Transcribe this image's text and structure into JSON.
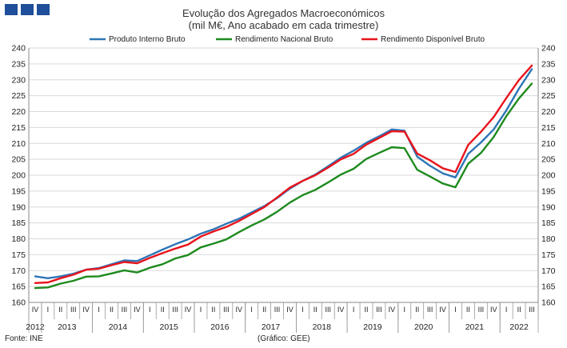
{
  "header": {
    "title": "Evolução dos Agregados Macroeconómicos",
    "subtitle": "(mil M€, Ano acabado em cada trimestre)"
  },
  "footer": {
    "source": "Fonte: INE",
    "credit": "(Gráfico: GEE)"
  },
  "colors": {
    "brand": "#1f4e9a",
    "grid": "#d9d9d9"
  },
  "chart_data": {
    "type": "line",
    "title": "Evolução dos Agregados Macroeconómicos",
    "subtitle": "(mil M€, Ano acabado em cada trimestre)",
    "ylim": [
      160,
      240
    ],
    "ytick_step": 5,
    "y_axis_both_sides": true,
    "grid": true,
    "legend_position": "top",
    "x": [
      "2012 IV",
      "2013 I",
      "2013 II",
      "2013 III",
      "2013 IV",
      "2014 I",
      "2014 II",
      "2014 III",
      "2014 IV",
      "2015 I",
      "2015 II",
      "2015 III",
      "2015 IV",
      "2016 I",
      "2016 II",
      "2016 III",
      "2016 IV",
      "2017 I",
      "2017 II",
      "2017 III",
      "2017 IV",
      "2018 I",
      "2018 II",
      "2018 III",
      "2018 IV",
      "2019 I",
      "2019 II",
      "2019 III",
      "2019 IV",
      "2020 I",
      "2020 II",
      "2020 III",
      "2020 IV",
      "2021 I",
      "2021 II",
      "2021 III",
      "2021 IV",
      "2022 I",
      "2022 II",
      "2022 III"
    ],
    "quarter_labels": [
      "IV",
      "I",
      "II",
      "III",
      "IV",
      "I",
      "II",
      "III",
      "IV",
      "I",
      "II",
      "III",
      "IV",
      "I",
      "II",
      "III",
      "IV",
      "I",
      "II",
      "III",
      "IV",
      "I",
      "II",
      "III",
      "IV",
      "I",
      "II",
      "III",
      "IV",
      "I",
      "II",
      "III",
      "IV",
      "I",
      "II",
      "III",
      "IV",
      "I",
      "II",
      "III"
    ],
    "year_labels": [
      {
        "label": "2012",
        "start": 0,
        "end": 0
      },
      {
        "label": "2013",
        "start": 1,
        "end": 4
      },
      {
        "label": "2014",
        "start": 5,
        "end": 8
      },
      {
        "label": "2015",
        "start": 9,
        "end": 12
      },
      {
        "label": "2016",
        "start": 13,
        "end": 16
      },
      {
        "label": "2017",
        "start": 17,
        "end": 20
      },
      {
        "label": "2018",
        "start": 21,
        "end": 24
      },
      {
        "label": "2019",
        "start": 25,
        "end": 28
      },
      {
        "label": "2020",
        "start": 29,
        "end": 32
      },
      {
        "label": "2021",
        "start": 33,
        "end": 36
      },
      {
        "label": "2022",
        "start": 37,
        "end": 39
      }
    ],
    "series": [
      {
        "name": "Produto Interno Bruto",
        "color": "#2e75b6",
        "values": [
          168.2,
          167.6,
          168.2,
          169.0,
          170.3,
          170.8,
          172.0,
          173.2,
          173.0,
          174.8,
          176.6,
          178.3,
          179.8,
          181.6,
          183.0,
          184.7,
          186.3,
          188.3,
          190.3,
          192.8,
          195.8,
          198.2,
          200.2,
          202.8,
          205.5,
          207.7,
          210.2,
          212.2,
          214.4,
          214.0,
          205.8,
          203.0,
          200.6,
          199.3,
          206.7,
          210.3,
          214.4,
          220.4,
          227.3,
          233.3
        ]
      },
      {
        "name": "Rendimento Nacional Bruto",
        "color": "#1e8a1e",
        "values": [
          164.5,
          164.7,
          165.9,
          166.8,
          168.1,
          168.2,
          169.1,
          170.1,
          169.4,
          170.9,
          172.0,
          173.8,
          174.9,
          177.3,
          178.5,
          179.8,
          182.1,
          184.2,
          186.1,
          188.5,
          191.4,
          193.7,
          195.4,
          197.7,
          200.2,
          202.0,
          205.1,
          207.0,
          208.8,
          208.5,
          201.7,
          199.6,
          197.4,
          196.2,
          203.6,
          207.0,
          212.0,
          218.6,
          224.2,
          228.8
        ]
      },
      {
        "name": "Rendimento Disponível Bruto",
        "color": "#e8141c",
        "values": [
          166.1,
          166.3,
          167.6,
          168.7,
          170.3,
          170.6,
          171.7,
          172.7,
          172.3,
          174.0,
          175.5,
          176.9,
          178.2,
          180.7,
          182.3,
          183.7,
          185.6,
          187.8,
          190.0,
          193.0,
          196.1,
          198.2,
          200.0,
          202.4,
          205.0,
          206.7,
          209.6,
          211.7,
          213.8,
          213.7,
          206.8,
          204.7,
          202.2,
          201.0,
          209.5,
          213.6,
          218.3,
          224.3,
          230.0,
          234.5
        ]
      }
    ]
  }
}
